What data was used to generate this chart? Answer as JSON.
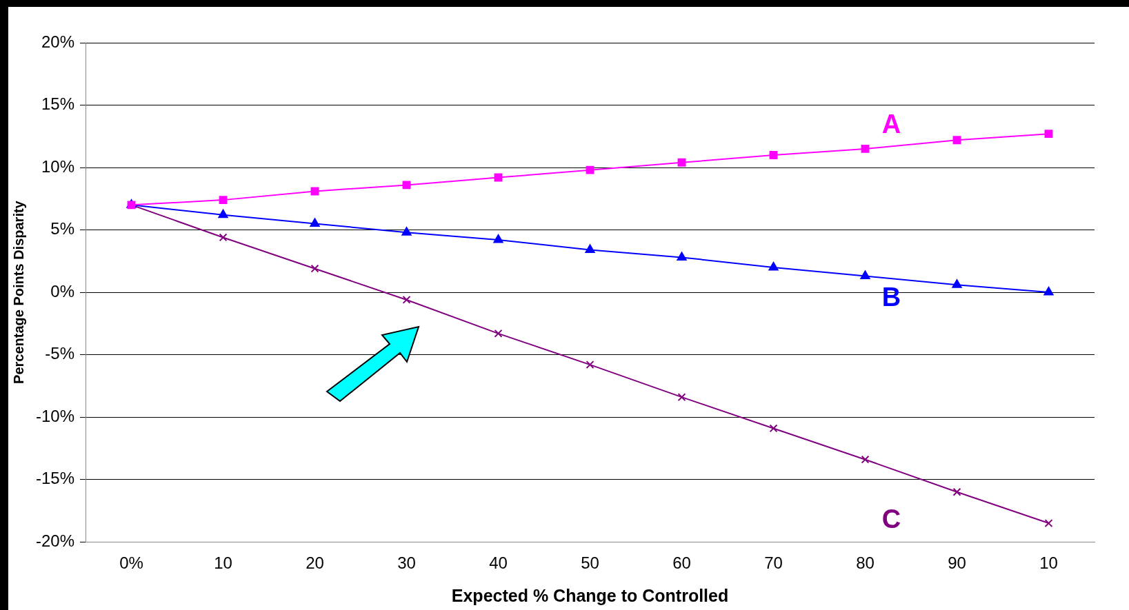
{
  "chart_data": {
    "type": "line",
    "xlabel": "Expected % Change to Controlled",
    "ylabel": "Percentage Points Disparity",
    "categories": [
      "0%",
      "10",
      "20",
      "30",
      "40",
      "50",
      "60",
      "70",
      "80",
      "90",
      "10"
    ],
    "series": [
      {
        "name": "A",
        "color": "#ff00ff",
        "marker": "square",
        "values": [
          7,
          7.4,
          8.1,
          8.6,
          9.2,
          9.8,
          10.4,
          11.0,
          11.5,
          12.2,
          12.7
        ]
      },
      {
        "name": "B",
        "color": "#0000ff",
        "marker": "triangle",
        "values": [
          7,
          6.2,
          5.5,
          4.8,
          4.2,
          3.4,
          2.8,
          2.0,
          1.3,
          0.6,
          0
        ]
      },
      {
        "name": "C",
        "color": "#800080",
        "marker": "cross",
        "values": [
          7,
          4.4,
          1.9,
          -0.6,
          -3.3,
          -5.8,
          -8.4,
          -10.9,
          -13.4,
          -16.0,
          -18.5
        ]
      }
    ],
    "ylim": [
      -20,
      20
    ],
    "yticks": [
      {
        "value": -20,
        "label": "-20%"
      },
      {
        "value": -15,
        "label": "-15%"
      },
      {
        "value": -10,
        "label": "-10%"
      },
      {
        "value": -5,
        "label": "-5%"
      },
      {
        "value": 0,
        "label": "0%"
      },
      {
        "value": 5,
        "label": "5%"
      },
      {
        "value": 10,
        "label": "10%"
      },
      {
        "value": 15,
        "label": "15%"
      },
      {
        "value": 20,
        "label": "20%"
      }
    ],
    "grid": "y",
    "legend": false,
    "line_style": "solid"
  }
}
